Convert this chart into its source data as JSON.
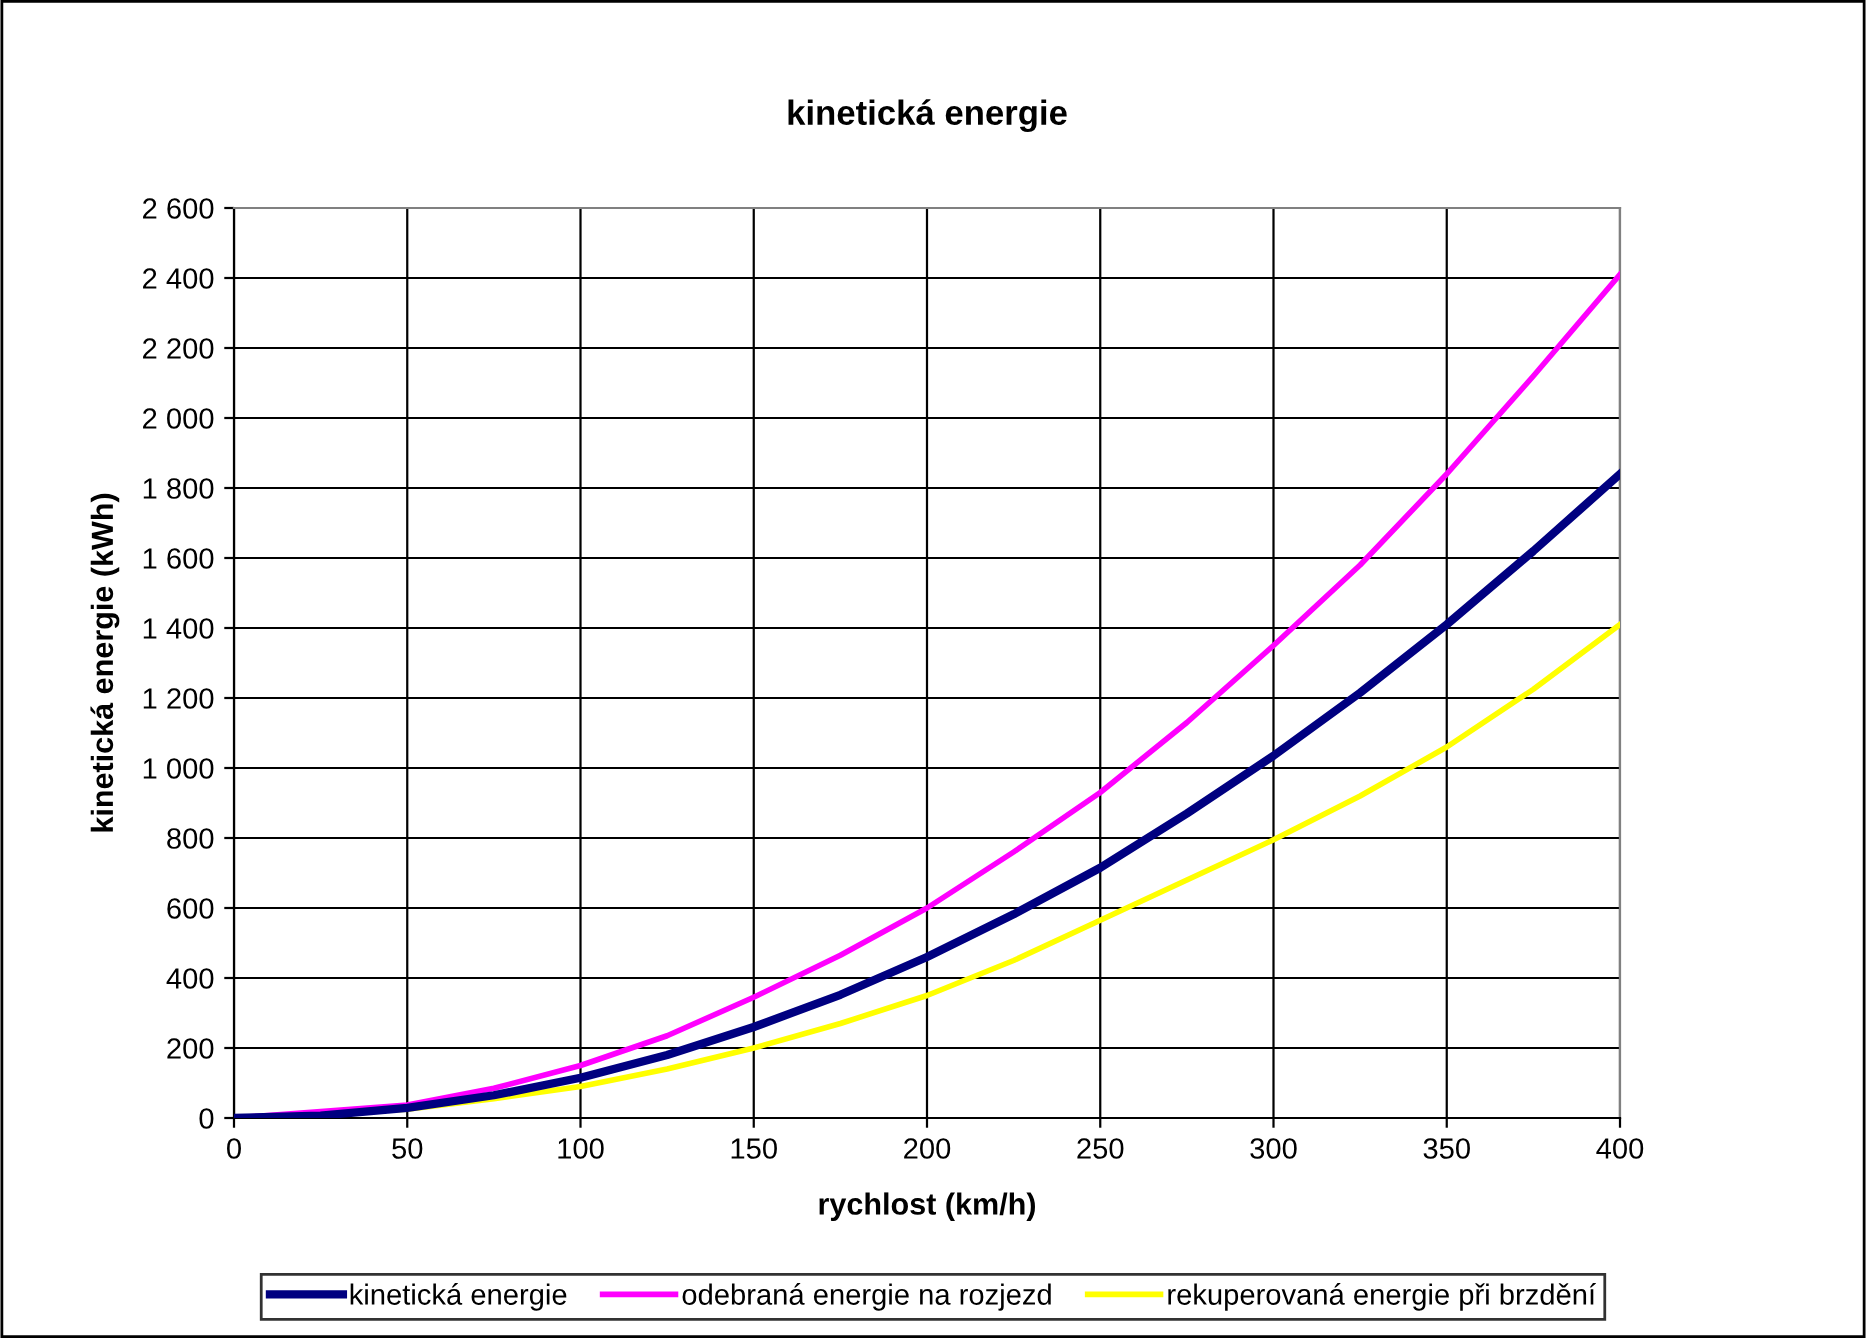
{
  "chart_data": {
    "type": "line",
    "title": "kinetická energie",
    "xlabel": "rychlost (km/h)",
    "ylabel": "kinetická energie (kWh)",
    "x": [
      0,
      25,
      50,
      75,
      100,
      125,
      150,
      175,
      200,
      225,
      250,
      275,
      300,
      325,
      350,
      375,
      400
    ],
    "series": [
      {
        "name": "kinetická energie",
        "color": "#000080",
        "values": [
          0,
          7,
          29,
          65,
          115,
          180,
          260,
          352,
          460,
          582,
          715,
          870,
          1035,
          1215,
          1410,
          1620,
          1840
        ]
      },
      {
        "name": "odebraná energie na rozjezd",
        "color": "#ff00ff",
        "x": [
          0,
          50,
          75,
          100,
          125,
          150,
          175,
          200,
          225,
          250,
          275,
          300,
          325,
          350,
          375,
          400
        ],
        "values": [
          0,
          37,
          85,
          150,
          235,
          345,
          465,
          600,
          760,
          930,
          1130,
          1350,
          1580,
          1840,
          2120,
          2410
        ]
      },
      {
        "name": "rekuperovaná energie při brzdění",
        "color": "#ffff00",
        "x": [
          0,
          50,
          75,
          100,
          125,
          150,
          175,
          200,
          225,
          250,
          275,
          300,
          325,
          350,
          375,
          400
        ],
        "values": [
          0,
          25,
          55,
          90,
          140,
          200,
          270,
          350,
          450,
          565,
          680,
          795,
          920,
          1060,
          1225,
          1410
        ]
      }
    ],
    "xlim": [
      0,
      400
    ],
    "xticks": [
      0,
      50,
      100,
      150,
      200,
      250,
      300,
      350,
      400
    ],
    "ylim": [
      0,
      2600
    ],
    "yticks": [
      {
        "value": 0,
        "label": "0"
      },
      {
        "value": 200,
        "label": "200"
      },
      {
        "value": 400,
        "label": "400"
      },
      {
        "value": 600,
        "label": "600"
      },
      {
        "value": 800,
        "label": "800"
      },
      {
        "value": 1000,
        "label": "1 000"
      },
      {
        "value": 1200,
        "label": "1 200"
      },
      {
        "value": 1400,
        "label": "1 400"
      },
      {
        "value": 1600,
        "label": "1 600"
      },
      {
        "value": 1800,
        "label": "1 800"
      },
      {
        "value": 2000,
        "label": "2 000"
      },
      {
        "value": 2200,
        "label": "2 200"
      },
      {
        "value": 2400,
        "label": "2 400"
      },
      {
        "value": 2600,
        "label": "2 600"
      }
    ],
    "grid": true,
    "legend": "bottom",
    "marker": "none",
    "line_style": "solid"
  }
}
